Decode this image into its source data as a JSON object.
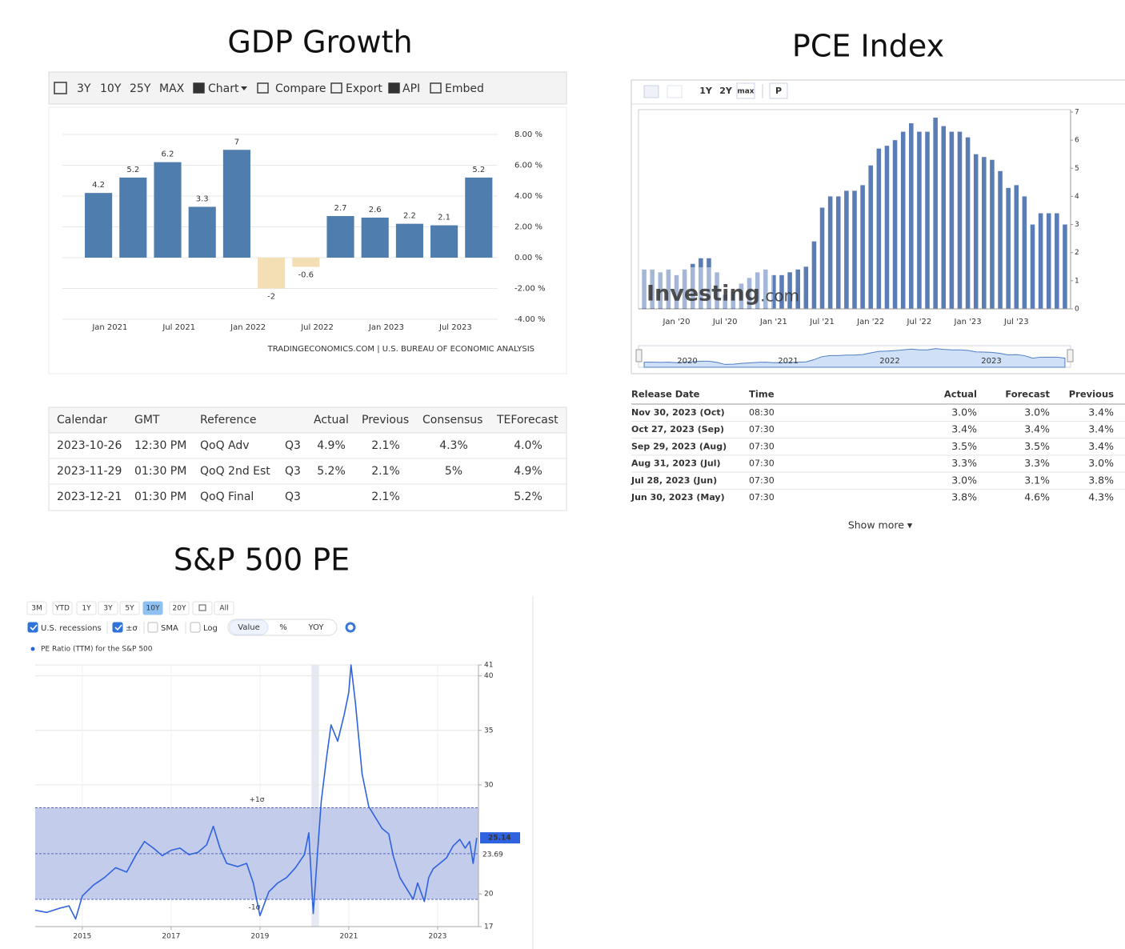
{
  "chart_data": [
    {
      "type": "bar",
      "title": "GDP Growth",
      "categories": [
        null,
        "Jan 2021",
        null,
        "Jul 2021",
        null,
        "Jan 2022",
        null,
        "Jul 2022",
        null,
        "Jan 2023",
        null,
        "Jul 2023"
      ],
      "values": [
        4.2,
        5.2,
        6.2,
        3.3,
        7,
        -2,
        -0.6,
        2.7,
        2.6,
        2.2,
        2.1,
        5.2
      ],
      "show_values": true,
      "color": "#4f7dad",
      "negative_color": "#f3dfb3",
      "ylim": [
        -4,
        8
      ],
      "yticks": [
        {
          "value": -4,
          "label": "-4.00 %"
        },
        {
          "value": -2,
          "label": "-2.00 %"
        },
        {
          "value": 0,
          "label": "0.00 %"
        },
        {
          "value": 2,
          "label": "2.00 %"
        },
        {
          "value": 4,
          "label": "4.00 %"
        },
        {
          "value": 6,
          "label": "6.00 %"
        },
        {
          "value": 8,
          "label": "8.00 %"
        }
      ],
      "grid": true,
      "source": "TRADINGECONOMICS.COM | U.S. BUREAU OF ECONOMIC ANALYSIS"
    },
    {
      "type": "bar",
      "title": "PCE Index",
      "categories": [
        null,
        null,
        null,
        null,
        "Jan '20",
        null,
        null,
        null,
        null,
        null,
        "Jul '20",
        null,
        null,
        null,
        null,
        null,
        "Jan '21",
        null,
        null,
        null,
        null,
        null,
        "Jul '21",
        null,
        null,
        null,
        null,
        null,
        "Jan '22",
        null,
        null,
        null,
        null,
        null,
        "Jul '22",
        null,
        null,
        null,
        null,
        null,
        "Jan '23",
        null,
        null,
        null,
        null,
        null,
        "Jul '23",
        null,
        null,
        null,
        null,
        null,
        null
      ],
      "values": [
        1.4,
        1.4,
        1.3,
        1.4,
        1.2,
        1.4,
        1.6,
        1.8,
        1.8,
        1.3,
        0.5,
        0.6,
        0.9,
        1.1,
        1.3,
        1.4,
        1.2,
        1.2,
        1.3,
        1.4,
        1.5,
        2.4,
        3.6,
        4.0,
        4.0,
        4.2,
        4.2,
        4.4,
        5.1,
        5.7,
        5.8,
        6.0,
        6.3,
        6.6,
        6.3,
        6.3,
        6.8,
        6.5,
        6.3,
        6.3,
        6.1,
        5.5,
        5.4,
        5.3,
        4.9,
        4.3,
        4.4,
        4.0,
        3.0,
        3.4,
        3.4,
        3.4,
        3.0
      ],
      "show_values": false,
      "color": "#5b7db5",
      "ylim": [
        0,
        7
      ],
      "yticks": [
        0,
        1,
        2,
        3,
        4,
        5,
        6,
        7
      ],
      "grid": false,
      "watermark": "Investing",
      "watermark_suffix": ".com",
      "navigator_labels": [
        "2020",
        "2021",
        "2022",
        "2023"
      ]
    },
    {
      "type": "line",
      "title": "S&P 500 PE",
      "legend": "PE Ratio (TTM) for the S&P 500",
      "series": [
        {
          "name": "PE Ratio (TTM) for the S&P 500",
          "color": "#2e62de",
          "x": [
            2013.94,
            2014.2,
            2014.5,
            2014.7,
            2014.85,
            2015.0,
            2015.25,
            2015.5,
            2015.75,
            2016.0,
            2016.2,
            2016.4,
            2016.6,
            2016.8,
            2017.0,
            2017.2,
            2017.4,
            2017.6,
            2017.8,
            2017.95,
            2018.1,
            2018.25,
            2018.5,
            2018.7,
            2018.85,
            2019.0,
            2019.2,
            2019.4,
            2019.6,
            2019.8,
            2020.0,
            2020.1,
            2020.2,
            2020.3,
            2020.38,
            2020.5,
            2020.6,
            2020.75,
            2020.9,
            2021.0,
            2021.05,
            2021.15,
            2021.3,
            2021.45,
            2021.6,
            2021.75,
            2021.9,
            2022.0,
            2022.15,
            2022.3,
            2022.45,
            2022.55,
            2022.7,
            2022.8,
            2022.9,
            2023.05,
            2023.2,
            2023.35,
            2023.5,
            2023.62,
            2023.72,
            2023.8,
            2023.88
          ],
          "values": [
            18.5,
            18.3,
            18.7,
            18.9,
            17.7,
            19.8,
            20.8,
            21.5,
            22.4,
            22.0,
            23.5,
            24.8,
            24.2,
            23.5,
            24.0,
            24.2,
            23.6,
            23.8,
            24.5,
            26.2,
            24.2,
            22.8,
            22.5,
            22.8,
            21.0,
            18.0,
            20.2,
            21.0,
            21.5,
            22.4,
            23.6,
            25.6,
            18.2,
            24.0,
            28.5,
            32.5,
            35.5,
            34.0,
            36.5,
            38.5,
            41.0,
            37.5,
            31.0,
            28.0,
            27.0,
            26.0,
            25.5,
            23.5,
            21.5,
            20.5,
            19.5,
            21.0,
            19.3,
            21.5,
            22.3,
            22.8,
            23.3,
            24.4,
            25.0,
            24.2,
            24.8,
            22.8,
            25.14
          ]
        }
      ],
      "xlim": [
        2013.94,
        2023.92
      ],
      "xticks": [
        2015,
        2017,
        2019,
        2021,
        2023
      ],
      "ylim": [
        17,
        41
      ],
      "yticks": [
        17,
        20,
        30,
        35,
        40,
        41
      ],
      "grid": true,
      "mean": 23.69,
      "plus_sigma": 27.9,
      "minus_sigma": 19.5,
      "plus_sigma_label": "+1σ",
      "minus_sigma_label": "-1σ",
      "recessions": [
        [
          2020.16,
          2020.33
        ]
      ],
      "band_color": "#bac3e7"
    }
  ],
  "gdp_toolbar": {
    "items": [
      "3Y",
      "10Y",
      "25Y",
      "MAX",
      "Chart",
      "Compare",
      "Export",
      "API",
      "Embed"
    ]
  },
  "gdp_table": {
    "headers": [
      "Calendar",
      "GMT",
      "Reference",
      "Actual",
      "Previous",
      "Consensus",
      "TEForecast"
    ],
    "rows": [
      [
        "2023-10-26",
        "12:30 PM",
        "QoQ Adv",
        "Q3",
        "4.9%",
        "2.1%",
        "4.3%",
        "4.0%"
      ],
      [
        "2023-11-29",
        "01:30 PM",
        "QoQ 2nd Est",
        "Q3",
        "5.2%",
        "2.1%",
        "5%",
        "4.9%"
      ],
      [
        "2023-12-21",
        "01:30 PM",
        "QoQ Final",
        "Q3",
        null,
        "2.1%",
        null,
        "5.2%"
      ]
    ]
  },
  "pce_toolbar": {
    "items": [
      "1Y",
      "2Y",
      "max",
      "P"
    ]
  },
  "pce_table": {
    "headers": [
      "Release Date",
      "Time",
      "Actual",
      "Forecast",
      "Previous"
    ],
    "rows": [
      {
        "cells": [
          "Nov 30, 2023 (Oct)",
          "08:30",
          "3.0%",
          "3.0%",
          "3.4%"
        ],
        "colors": [
          null,
          null,
          null,
          null,
          null
        ]
      },
      {
        "cells": [
          "Oct 27, 2023 (Sep)",
          "07:30",
          "3.4%",
          "3.4%",
          "3.4%"
        ],
        "colors": [
          null,
          null,
          null,
          null,
          "#d8372c"
        ]
      },
      {
        "cells": [
          "Sep 29, 2023 (Aug)",
          "07:30",
          "3.5%",
          "3.5%",
          "3.4%"
        ],
        "colors": [
          null,
          null,
          null,
          null,
          "#3a9a2f"
        ]
      },
      {
        "cells": [
          "Aug 31, 2023 (Jul)",
          "07:30",
          "3.3%",
          "3.3%",
          "3.0%"
        ],
        "colors": [
          null,
          null,
          null,
          null,
          null
        ]
      },
      {
        "cells": [
          "Jul 28, 2023 (Jun)",
          "07:30",
          "3.0%",
          "3.1%",
          "3.8%"
        ],
        "colors": [
          null,
          null,
          "#d8372c",
          null,
          null
        ]
      },
      {
        "cells": [
          "Jun 30, 2023 (May)",
          "07:30",
          "3.8%",
          "4.6%",
          "4.3%"
        ],
        "colors": [
          null,
          null,
          "#d8372c",
          null,
          "#d8372c"
        ]
      }
    ],
    "more": "Show more ▾"
  },
  "pe_toolbar": {
    "ranges": [
      "3M",
      "YTD",
      "1Y",
      "3Y",
      "5Y",
      "10Y",
      "20Y",
      "All"
    ],
    "selected_range": "10Y",
    "options": [
      "U.S. recessions",
      "±σ",
      "SMA",
      "Log"
    ],
    "checked": [
      true,
      true,
      false,
      false
    ],
    "modes": [
      "Value",
      "%",
      "YOY"
    ],
    "selected_mode": "Value"
  }
}
